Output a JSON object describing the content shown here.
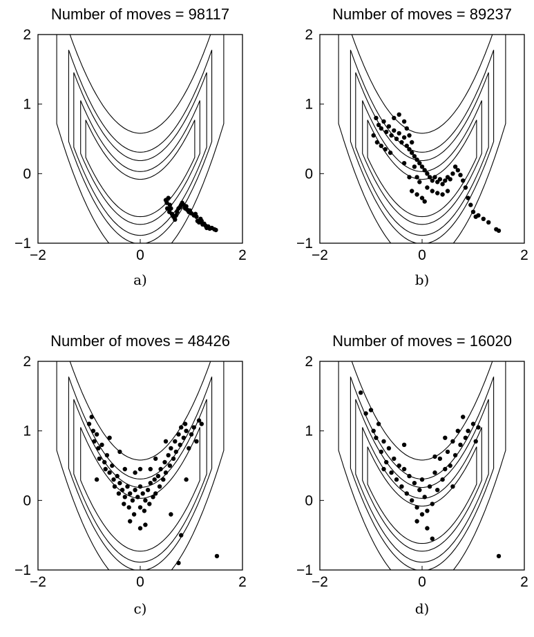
{
  "chart_data": [
    {
      "type": "scatter",
      "panel": "a)",
      "title": "Number of moves = 98117",
      "xlim": [
        -2,
        2
      ],
      "ylim": [
        -1,
        2
      ],
      "xticks": [
        "−2",
        "0",
        "2"
      ],
      "yticks": [
        "−1",
        "0",
        "1",
        "2"
      ],
      "contour_levels": [
        0.5,
        1.0,
        2.0,
        3.0,
        6.0
      ],
      "points": [
        [
          0.5,
          -0.38
        ],
        [
          0.52,
          -0.42
        ],
        [
          0.55,
          -0.35
        ],
        [
          0.58,
          -0.45
        ],
        [
          0.53,
          -0.5
        ],
        [
          0.57,
          -0.55
        ],
        [
          0.6,
          -0.5
        ],
        [
          0.62,
          -0.58
        ],
        [
          0.65,
          -0.62
        ],
        [
          0.68,
          -0.66
        ],
        [
          0.7,
          -0.6
        ],
        [
          0.72,
          -0.55
        ],
        [
          0.75,
          -0.5
        ],
        [
          0.78,
          -0.48
        ],
        [
          0.8,
          -0.45
        ],
        [
          0.82,
          -0.42
        ],
        [
          0.85,
          -0.45
        ],
        [
          0.88,
          -0.5
        ],
        [
          0.9,
          -0.47
        ],
        [
          0.92,
          -0.52
        ],
        [
          0.95,
          -0.55
        ],
        [
          0.97,
          -0.53
        ],
        [
          1.0,
          -0.57
        ],
        [
          1.05,
          -0.6
        ],
        [
          1.08,
          -0.58
        ],
        [
          1.1,
          -0.62
        ],
        [
          1.12,
          -0.68
        ],
        [
          1.15,
          -0.7
        ],
        [
          1.18,
          -0.65
        ],
        [
          1.2,
          -0.68
        ],
        [
          1.22,
          -0.73
        ],
        [
          1.25,
          -0.72
        ],
        [
          1.28,
          -0.75
        ],
        [
          1.3,
          -0.78
        ],
        [
          1.33,
          -0.76
        ],
        [
          1.36,
          -0.79
        ],
        [
          1.4,
          -0.78
        ],
        [
          1.45,
          -0.8
        ],
        [
          1.48,
          -0.81
        ]
      ]
    },
    {
      "type": "scatter",
      "panel": "b)",
      "title": "Number of moves = 89237",
      "xlim": [
        -2,
        2
      ],
      "ylim": [
        -1,
        2
      ],
      "xticks": [
        "−2",
        "0",
        "2"
      ],
      "yticks": [
        "−1",
        "0",
        "1",
        "2"
      ],
      "contour_levels": [
        0.5,
        1.0,
        2.0,
        3.0,
        6.0
      ],
      "points": [
        [
          -0.9,
          0.8
        ],
        [
          -0.85,
          0.7
        ],
        [
          -0.8,
          0.65
        ],
        [
          -0.75,
          0.75
        ],
        [
          -0.7,
          0.6
        ],
        [
          -0.65,
          0.68
        ],
        [
          -0.6,
          0.55
        ],
        [
          -0.55,
          0.62
        ],
        [
          -0.5,
          0.5
        ],
        [
          -0.45,
          0.58
        ],
        [
          -0.4,
          0.45
        ],
        [
          -0.35,
          0.52
        ],
        [
          -0.3,
          0.4
        ],
        [
          -0.25,
          0.35
        ],
        [
          -0.2,
          0.3
        ],
        [
          -0.15,
          0.25
        ],
        [
          -0.1,
          0.2
        ],
        [
          -0.05,
          0.15
        ],
        [
          0.0,
          0.1
        ],
        [
          0.05,
          0.05
        ],
        [
          0.1,
          0.0
        ],
        [
          0.15,
          -0.05
        ],
        [
          0.2,
          -0.1
        ],
        [
          0.25,
          -0.05
        ],
        [
          0.3,
          -0.12
        ],
        [
          0.35,
          -0.08
        ],
        [
          0.4,
          -0.15
        ],
        [
          0.45,
          -0.1
        ],
        [
          0.5,
          -0.05
        ],
        [
          0.55,
          -0.08
        ],
        [
          0.6,
          0.0
        ],
        [
          0.65,
          0.1
        ],
        [
          0.7,
          0.05
        ],
        [
          0.75,
          -0.02
        ],
        [
          0.8,
          -0.1
        ],
        [
          0.85,
          -0.2
        ],
        [
          0.9,
          -0.35
        ],
        [
          0.95,
          -0.45
        ],
        [
          1.0,
          -0.55
        ],
        [
          1.05,
          -0.62
        ],
        [
          1.1,
          -0.6
        ],
        [
          1.2,
          -0.65
        ],
        [
          1.3,
          -0.7
        ],
        [
          1.45,
          -0.8
        ],
        [
          1.5,
          -0.82
        ],
        [
          -0.95,
          0.55
        ],
        [
          -0.88,
          0.45
        ],
        [
          -0.8,
          0.4
        ],
        [
          -0.72,
          0.35
        ],
        [
          -0.62,
          0.3
        ],
        [
          -0.55,
          0.8
        ],
        [
          -0.45,
          0.85
        ],
        [
          -0.35,
          0.75
        ],
        [
          -0.3,
          0.65
        ],
        [
          -0.25,
          0.55
        ],
        [
          -0.2,
          0.45
        ],
        [
          -0.15,
          0.1
        ],
        [
          -0.1,
          -0.05
        ],
        [
          -0.05,
          -0.12
        ],
        [
          -0.2,
          -0.25
        ],
        [
          -0.1,
          -0.3
        ],
        [
          0.0,
          -0.35
        ],
        [
          0.05,
          -0.4
        ],
        [
          -0.25,
          -0.05
        ],
        [
          -0.35,
          0.15
        ],
        [
          0.1,
          -0.2
        ],
        [
          0.2,
          -0.25
        ],
        [
          0.3,
          -0.28
        ],
        [
          0.4,
          -0.3
        ],
        [
          0.5,
          -0.25
        ]
      ]
    },
    {
      "type": "scatter",
      "panel": "c)",
      "title": "Number of moves = 48426",
      "xlim": [
        -2,
        2
      ],
      "ylim": [
        -1,
        2
      ],
      "xticks": [
        "−2",
        "0",
        "2"
      ],
      "yticks": [
        "−1",
        "0",
        "1",
        "2"
      ],
      "contour_levels": [
        1.0,
        2.0,
        3.0,
        6.0
      ],
      "points": [
        [
          -1.0,
          1.1
        ],
        [
          -0.95,
          1.2
        ],
        [
          -0.92,
          1.0
        ],
        [
          -0.9,
          0.85
        ],
        [
          -0.85,
          0.95
        ],
        [
          -0.82,
          0.75
        ],
        [
          -0.8,
          0.6
        ],
        [
          -0.75,
          0.8
        ],
        [
          -0.7,
          0.55
        ],
        [
          -0.68,
          0.45
        ],
        [
          -0.65,
          0.65
        ],
        [
          -0.6,
          0.4
        ],
        [
          -0.55,
          0.5
        ],
        [
          -0.52,
          0.3
        ],
        [
          -0.5,
          0.2
        ],
        [
          -0.45,
          0.35
        ],
        [
          -0.42,
          0.1
        ],
        [
          -0.4,
          0.25
        ],
        [
          -0.35,
          0.15
        ],
        [
          -0.32,
          -0.05
        ],
        [
          -0.3,
          0.05
        ],
        [
          -0.25,
          0.2
        ],
        [
          -0.22,
          -0.1
        ],
        [
          -0.2,
          0.1
        ],
        [
          -0.15,
          0.0
        ],
        [
          -0.12,
          -0.2
        ],
        [
          -0.1,
          0.15
        ],
        [
          -0.05,
          0.05
        ],
        [
          0.0,
          -0.1
        ],
        [
          0.0,
          0.2
        ],
        [
          0.05,
          0.1
        ],
        [
          0.08,
          -0.15
        ],
        [
          0.1,
          0.0
        ],
        [
          0.15,
          0.15
        ],
        [
          0.18,
          -0.05
        ],
        [
          0.2,
          0.25
        ],
        [
          0.25,
          0.05
        ],
        [
          0.28,
          0.3
        ],
        [
          0.3,
          0.1
        ],
        [
          0.35,
          0.35
        ],
        [
          0.38,
          0.2
        ],
        [
          0.4,
          0.45
        ],
        [
          0.45,
          0.3
        ],
        [
          0.48,
          0.55
        ],
        [
          0.5,
          0.4
        ],
        [
          0.55,
          0.65
        ],
        [
          0.58,
          0.5
        ],
        [
          0.6,
          0.75
        ],
        [
          0.65,
          0.6
        ],
        [
          0.68,
          0.85
        ],
        [
          0.7,
          0.7
        ],
        [
          0.75,
          0.95
        ],
        [
          0.78,
          0.8
        ],
        [
          0.8,
          1.05
        ],
        [
          0.85,
          0.9
        ],
        [
          0.88,
          1.1
        ],
        [
          0.9,
          1.0
        ],
        [
          0.95,
          0.75
        ],
        [
          1.0,
          0.95
        ],
        [
          1.05,
          1.05
        ],
        [
          1.1,
          0.85
        ],
        [
          1.15,
          1.15
        ],
        [
          1.2,
          1.1
        ],
        [
          -0.6,
          0.9
        ],
        [
          -0.4,
          0.7
        ],
        [
          -0.3,
          0.45
        ],
        [
          0.3,
          0.6
        ],
        [
          0.5,
          0.85
        ],
        [
          0.2,
          0.45
        ],
        [
          -0.1,
          0.4
        ],
        [
          0.0,
          0.45
        ],
        [
          -0.2,
          -0.3
        ],
        [
          0.1,
          -0.35
        ],
        [
          0.0,
          -0.4
        ],
        [
          0.6,
          -0.2
        ],
        [
          0.8,
          -0.5
        ],
        [
          0.75,
          -0.9
        ],
        [
          1.5,
          -0.8
        ],
        [
          -0.85,
          0.3
        ],
        [
          0.9,
          0.3
        ]
      ]
    },
    {
      "type": "scatter",
      "panel": "d)",
      "title": "Number of moves = 16020",
      "xlim": [
        -2,
        2
      ],
      "ylim": [
        -1,
        2
      ],
      "xticks": [
        "−2",
        "0",
        "2"
      ],
      "yticks": [
        "−1",
        "0",
        "1",
        "2"
      ],
      "contour_levels": [
        0.5,
        1.0,
        2.0,
        3.0,
        6.0
      ],
      "points": [
        [
          -1.2,
          1.55
        ],
        [
          -1.1,
          1.25
        ],
        [
          -1.0,
          1.3
        ],
        [
          -0.95,
          1.0
        ],
        [
          -0.9,
          0.9
        ],
        [
          -0.85,
          1.1
        ],
        [
          -0.8,
          0.7
        ],
        [
          -0.75,
          0.85
        ],
        [
          -0.7,
          0.55
        ],
        [
          -0.65,
          0.75
        ],
        [
          -0.6,
          0.4
        ],
        [
          -0.55,
          0.6
        ],
        [
          -0.5,
          0.3
        ],
        [
          -0.45,
          0.5
        ],
        [
          -0.4,
          0.2
        ],
        [
          -0.35,
          0.45
        ],
        [
          -0.3,
          0.1
        ],
        [
          -0.25,
          0.35
        ],
        [
          -0.2,
          0.0
        ],
        [
          -0.15,
          0.25
        ],
        [
          -0.1,
          -0.1
        ],
        [
          -0.05,
          0.15
        ],
        [
          0.0,
          -0.2
        ],
        [
          0.0,
          0.3
        ],
        [
          0.05,
          0.05
        ],
        [
          0.1,
          -0.15
        ],
        [
          0.15,
          0.2
        ],
        [
          0.2,
          -0.05
        ],
        [
          0.25,
          0.4
        ],
        [
          0.3,
          0.15
        ],
        [
          0.35,
          0.6
        ],
        [
          0.4,
          0.3
        ],
        [
          0.45,
          0.45
        ],
        [
          0.5,
          0.7
        ],
        [
          0.55,
          0.5
        ],
        [
          0.6,
          0.85
        ],
        [
          0.65,
          0.65
        ],
        [
          0.7,
          1.0
        ],
        [
          0.75,
          0.8
        ],
        [
          0.8,
          1.2
        ],
        [
          0.85,
          0.9
        ],
        [
          0.9,
          1.0
        ],
        [
          1.0,
          1.1
        ],
        [
          1.05,
          0.85
        ],
        [
          1.1,
          1.05
        ],
        [
          0.2,
          -0.55
        ],
        [
          0.25,
          0.63
        ],
        [
          -0.1,
          -0.3
        ],
        [
          0.1,
          -0.4
        ],
        [
          1.5,
          -0.8
        ],
        [
          -0.75,
          0.45
        ],
        [
          0.6,
          0.2
        ],
        [
          -0.35,
          0.8
        ],
        [
          0.45,
          0.9
        ]
      ]
    }
  ]
}
